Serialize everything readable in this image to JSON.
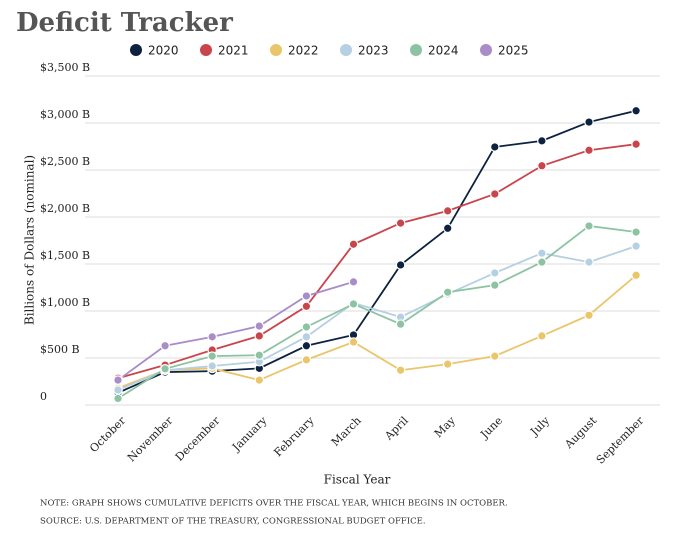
{
  "chart_data": {
    "type": "line",
    "title": "Deficit Tracker",
    "x_label": "Fiscal Year",
    "y_label": "Billions of Dollars (nominal)",
    "notes": [
      "NOTE: GRAPH SHOWS CUMULATIVE DEFICITS OVER THE FISCAL YEAR, WHICH BEGINS IN OCTOBER.",
      "SOURCE: U.S. DEPARTMENT OF THE TREASURY, CONGRESSIONAL BUDGET OFFICE."
    ],
    "categories": [
      "October",
      "November",
      "December",
      "January",
      "February",
      "March",
      "April",
      "May",
      "June",
      "July",
      "August",
      "September"
    ],
    "ylim": [
      0,
      3500
    ],
    "yticks": [
      0,
      {
        "value": 500,
        "label": "$500 B"
      },
      {
        "value": 1000,
        "label": "$1,000 B"
      },
      {
        "value": 1500,
        "label": "$1,500 B"
      },
      {
        "value": 2000,
        "label": "$2,000 B"
      },
      {
        "value": 2500,
        "label": "$2,500 B"
      },
      {
        "value": 3000,
        "label": "$3,000 B"
      },
      {
        "value": 3500,
        "label": "$3,500 B"
      }
    ],
    "grid": true,
    "series": [
      {
        "name": "2020",
        "color": "#0d2240",
        "values": [
          130,
          350,
          360,
          390,
          630,
          745,
          1490,
          1880,
          2745,
          2810,
          3010,
          3130
        ]
      },
      {
        "name": "2021",
        "color": "#c9454b",
        "values": [
          285,
          425,
          585,
          735,
          1050,
          1710,
          1935,
          2065,
          2245,
          2545,
          2710,
          2775
        ]
      },
      {
        "name": "2022",
        "color": "#eac56a",
        "values": [
          180,
          370,
          390,
          265,
          480,
          670,
          370,
          435,
          520,
          735,
          955,
          1380
        ]
      },
      {
        "name": "2023",
        "color": "#b5cfe3",
        "values": [
          160,
          370,
          415,
          460,
          725,
          1085,
          935,
          1180,
          1405,
          1615,
          1520,
          1690
        ]
      },
      {
        "name": "2024",
        "color": "#8dc3a3",
        "values": [
          70,
          385,
          520,
          530,
          830,
          1075,
          860,
          1200,
          1275,
          1520,
          1905,
          1840
        ]
      },
      {
        "name": "2025",
        "color": "#a88dc8",
        "values": [
          265,
          630,
          725,
          840,
          1160,
          1310,
          null,
          null,
          null,
          null,
          null,
          null
        ]
      }
    ]
  }
}
